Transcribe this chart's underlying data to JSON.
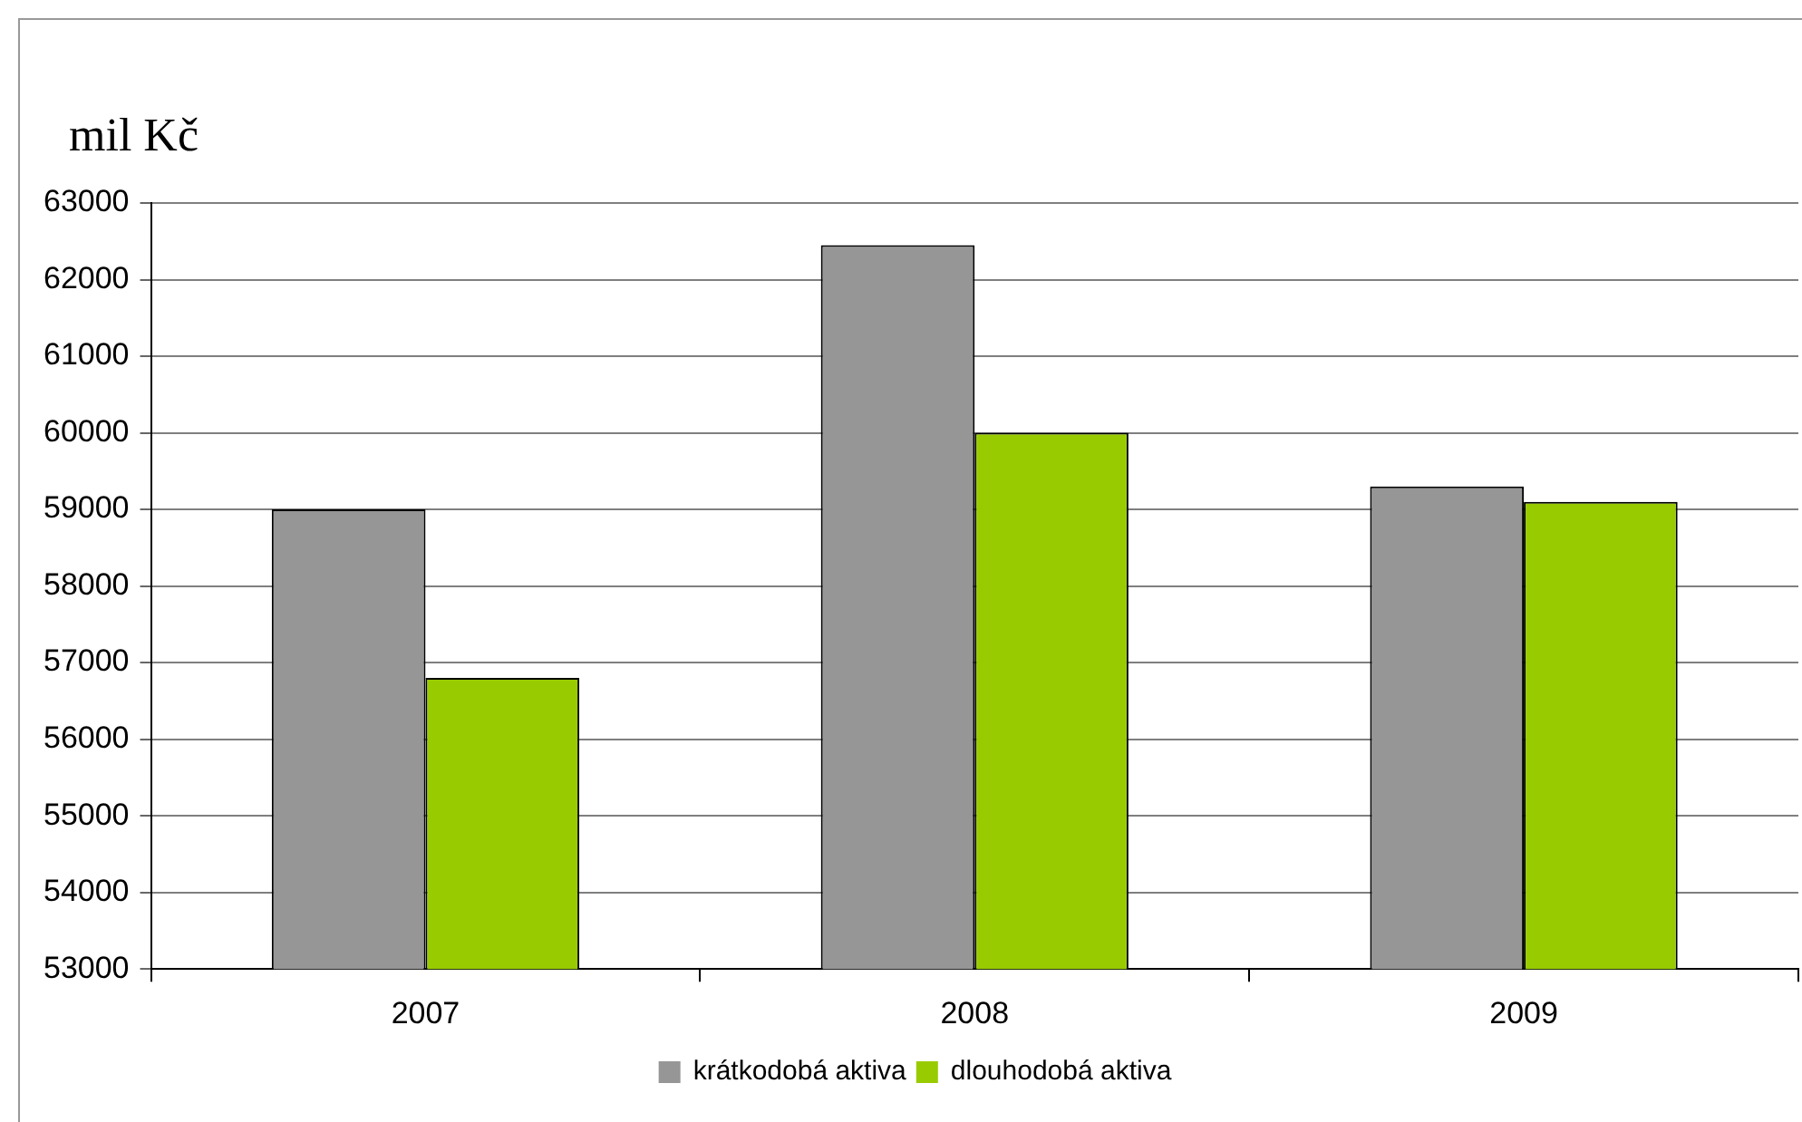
{
  "chart_data": {
    "type": "bar",
    "ylabel": "mil Kč",
    "categories": [
      "2007",
      "2008",
      "2009"
    ],
    "series": [
      {
        "name": "krátkodobá aktiva",
        "color": "#969696",
        "values": [
          59000,
          62450,
          59300
        ]
      },
      {
        "name": "dlouhodobá aktiva",
        "color": "#99cc00",
        "values": [
          56800,
          60000,
          59100
        ]
      }
    ],
    "ylim": [
      53000,
      63000
    ],
    "yticks": [
      53000,
      54000,
      55000,
      56000,
      57000,
      58000,
      59000,
      60000,
      61000,
      62000,
      63000
    ],
    "grid": "y",
    "legend": "bottom"
  }
}
